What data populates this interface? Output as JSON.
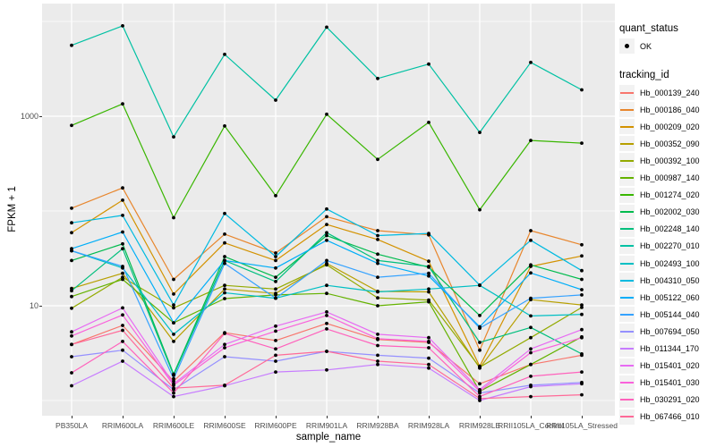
{
  "chart_data": {
    "type": "line",
    "title": "",
    "xlabel": "sample_name",
    "ylabel": "FPKM + 1",
    "y_scale": "log10",
    "y_ticks": [
      10,
      1000
    ],
    "y_tick_labels": [
      "10",
      "1000"
    ],
    "y_minor": [
      1,
      100,
      10000
    ],
    "ylim_log": [
      0.55,
      13500
    ],
    "grid": "on",
    "panel_bg": "#EBEBEB",
    "gridline_color": "#FFFFFF",
    "point_color": "#000000",
    "legend_position": "right",
    "categories": [
      "PB350LA",
      "RRIM600LA",
      "RRIM600LE",
      "RRIM600SE",
      "RRIM600PE",
      "RRIM901LA",
      "RRIM928BA",
      "RRIM928LA",
      "RRIM928LE",
      "RRII105LA_Control",
      "RRII105LA_Stressed"
    ],
    "legend": {
      "quant": {
        "title": "quant_status",
        "item": "OK"
      },
      "tracking": {
        "title": "tracking_id"
      }
    },
    "series": [
      {
        "name": "Hb_000139_240",
        "color": "#F8766D",
        "values": [
          3.9,
          6.2,
          1.6,
          5.2,
          4.3,
          6.5,
          4.4,
          4.1,
          1.5,
          2.4,
          3.0
        ]
      },
      {
        "name": "Hb_000186_040",
        "color": "#E8862D",
        "values": [
          107,
          175,
          19,
          57,
          36,
          87,
          62,
          56,
          3.4,
          62,
          44
        ]
      },
      {
        "name": "Hb_000209_020",
        "color": "#D39200",
        "values": [
          59,
          130,
          13.3,
          46,
          30,
          72,
          50,
          29.5,
          2.3,
          26,
          33.5
        ]
      },
      {
        "name": "Hb_000352_090",
        "color": "#B79F00",
        "values": [
          15.2,
          22,
          4.2,
          15,
          13.5,
          28,
          14.2,
          14,
          2.2,
          11.6,
          10.2
        ]
      },
      {
        "name": "Hb_000392_100",
        "color": "#93AA00",
        "values": [
          9.4,
          20,
          9.5,
          16.4,
          15,
          27,
          12.1,
          11.5,
          2.25,
          4.6,
          9.6
        ]
      },
      {
        "name": "Hb_000987_140",
        "color": "#64B200",
        "values": [
          12.5,
          19,
          6.6,
          11.9,
          13,
          13.5,
          10,
          11,
          1.25,
          2.4,
          4.7
        ]
      },
      {
        "name": "Hb_001274_020",
        "color": "#39B600",
        "values": [
          800,
          1350,
          85,
          790,
          145,
          1050,
          350,
          860,
          103,
          555,
          520
        ]
      },
      {
        "name": "Hb_002002_030",
        "color": "#00BB4E",
        "values": [
          30,
          45,
          1.9,
          33,
          20,
          55,
          35,
          25.5,
          7.9,
          27,
          19
        ]
      },
      {
        "name": "Hb_002248_140",
        "color": "#00BF7D",
        "values": [
          14.4,
          40,
          1.85,
          30,
          18,
          59,
          30,
          26,
          4.1,
          5.9,
          3.1
        ]
      },
      {
        "name": "Hb_002270_010",
        "color": "#00C1A3",
        "values": [
          5600,
          9000,
          605,
          4500,
          1480,
          8700,
          2500,
          3550,
          675,
          3700,
          1900
        ]
      },
      {
        "name": "Hb_002493_100",
        "color": "#00BFC4",
        "values": [
          38,
          25,
          5,
          13.7,
          12,
          16.4,
          14,
          15,
          16.4,
          7.8,
          8.1
        ]
      },
      {
        "name": "Hb_004310_050",
        "color": "#00BAE0",
        "values": [
          75,
          90,
          10.2,
          94,
          33,
          105,
          55,
          58,
          16.5,
          49,
          23.5
        ]
      },
      {
        "name": "Hb_005122_060",
        "color": "#00AEF8",
        "values": [
          40,
          60,
          6.6,
          30,
          25,
          49,
          28,
          20.6,
          6.0,
          22.2,
          14.8
        ]
      },
      {
        "name": "Hb_005144_040",
        "color": "#35A2FF",
        "values": [
          38,
          26,
          1.7,
          28,
          12,
          30,
          20,
          22,
          5.8,
          12,
          13
        ]
      },
      {
        "name": "Hb_007694_050",
        "color": "#9590FF",
        "values": [
          2.9,
          3.4,
          1.3,
          2.9,
          2.6,
          3.3,
          3.0,
          2.8,
          1.2,
          1.45,
          1.55
        ]
      },
      {
        "name": "Hb_011344_170",
        "color": "#C77CFF",
        "values": [
          1.43,
          2.6,
          1.1,
          1.43,
          2.0,
          2.1,
          2.4,
          2.2,
          1.0,
          1.4,
          1.5
        ]
      },
      {
        "name": "Hb_015401_020",
        "color": "#E76BF3",
        "values": [
          5.3,
          9.5,
          1.5,
          3.9,
          6.1,
          8.6,
          5.0,
          4.6,
          1.3,
          3.5,
          5.6
        ]
      },
      {
        "name": "Hb_015401_030",
        "color": "#FA62DB",
        "values": [
          4.8,
          8.0,
          1.45,
          3.6,
          5.4,
          7.9,
          4.5,
          4.2,
          1.25,
          3.2,
          4.6
        ]
      },
      {
        "name": "Hb_030291_020",
        "color": "#FF62BC",
        "values": [
          1.96,
          4.2,
          1.2,
          5.1,
          3.5,
          5.7,
          3.8,
          3.6,
          1.1,
          1.8,
          2.0
        ]
      },
      {
        "name": "Hb_067466_010",
        "color": "#FF6A98",
        "values": [
          3.9,
          5.5,
          1.35,
          1.45,
          3.0,
          3.3,
          2.6,
          2.4,
          1.05,
          1.1,
          1.15
        ]
      }
    ]
  }
}
